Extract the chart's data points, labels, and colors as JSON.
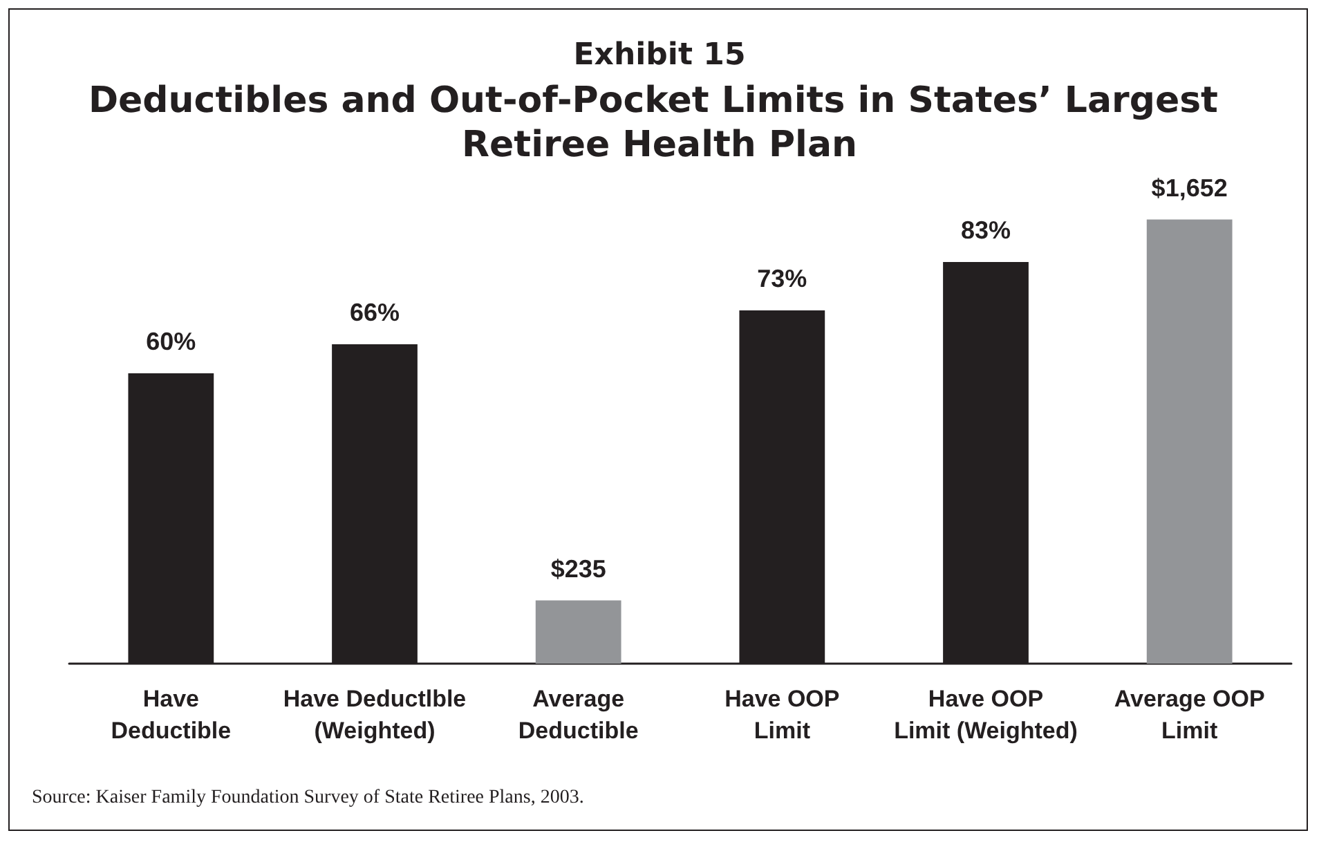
{
  "chart_data": {
    "type": "bar",
    "title": "Exhibit 15",
    "subtitle": "Deductibles and Out-of-Pocket Limits in States’ Largest Retiree Health Plan",
    "categories": [
      "Have\nDeductible",
      "Have Deductlble\n(Weighted)",
      "Average\nDeductible",
      "Have OOP\nLimit",
      "Have OOP\nLimit (Weighted)",
      "Average OOP\nLimit"
    ],
    "series": [
      {
        "color": "#231f20",
        "values": [
          60,
          66,
          null,
          73,
          83,
          null
        ],
        "value_labels": [
          "60%",
          "66%",
          null,
          "73%",
          "83%",
          null
        ]
      },
      {
        "color": "#939598",
        "axis": "y2",
        "values": [
          null,
          null,
          235,
          null,
          null,
          1652
        ],
        "value_labels": [
          null,
          null,
          "$235",
          null,
          null,
          "$1,652"
        ]
      }
    ],
    "tick_labels": "x",
    "grid": false,
    "annotations": [
      "Source: Kaiser Family Foundation Survey of State Retiree Plans, 2003."
    ]
  }
}
